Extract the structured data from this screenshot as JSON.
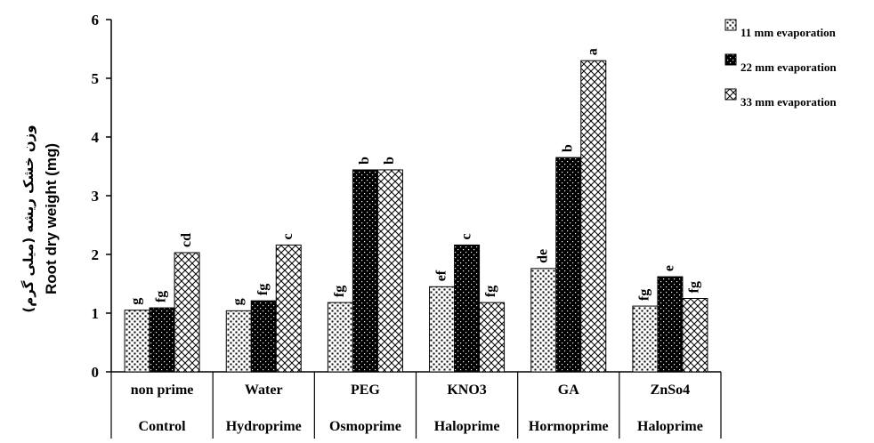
{
  "chart_data": {
    "type": "bar",
    "ylabel": "Root dry weight (mg)",
    "ylabel_fa": "وزن خشک ریشه (میلی گرم)",
    "ylim": [
      0,
      6
    ],
    "yticks": [
      "0",
      "1",
      "2",
      "3",
      "4",
      "5",
      "6"
    ],
    "grid": false,
    "legend_position": "top-right",
    "categories": [
      "non prime",
      "Water",
      "PEG",
      "KNO3",
      "GA",
      "ZnSo4"
    ],
    "groups": [
      "Control",
      "Hydroprime",
      "Osmoprime",
      "Haloprime",
      "Hormoprime",
      "Haloprime"
    ],
    "series": [
      {
        "name": "11 mm evaporation",
        "pattern": "dots",
        "values": [
          1.05,
          1.04,
          1.18,
          1.45,
          1.76,
          1.12
        ],
        "labels": [
          "g",
          "g",
          "fg",
          "ef",
          "de",
          "fg"
        ]
      },
      {
        "name": "22 mm evaporation",
        "pattern": "black-dots",
        "values": [
          1.09,
          1.21,
          3.44,
          2.16,
          3.65,
          1.62
        ],
        "labels": [
          "fg",
          "fg",
          "b",
          "c",
          "b",
          "e"
        ]
      },
      {
        "name": "33 mm evaporation",
        "pattern": "crosshatch",
        "values": [
          2.03,
          2.16,
          3.44,
          1.18,
          5.3,
          1.25
        ],
        "labels": [
          "cd",
          "c",
          "b",
          "fg",
          "a",
          "fg"
        ]
      }
    ]
  }
}
